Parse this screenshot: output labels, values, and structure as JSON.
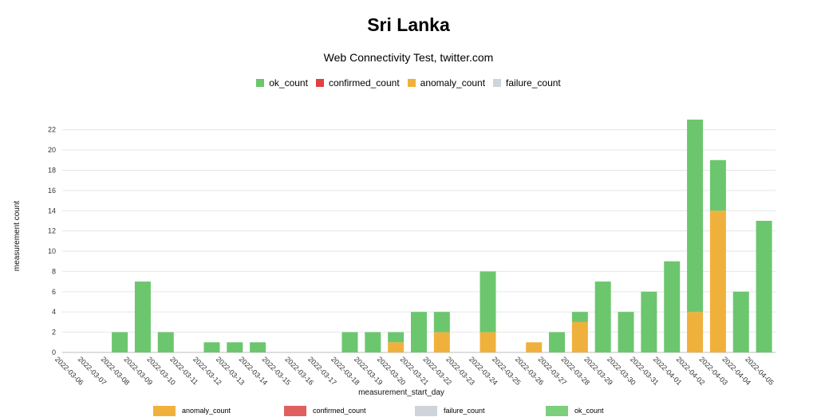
{
  "title": "Sri Lanka",
  "subtitle": "Web Connectivity Test, twitter.com",
  "legend_top": [
    {
      "key": "ok_count",
      "label": "ok_count",
      "color": "#6cc66e"
    },
    {
      "key": "confirmed_count",
      "label": "confirmed_count",
      "color": "#e0403f"
    },
    {
      "key": "anomaly_count",
      "label": "anomaly_count",
      "color": "#f0b13c"
    },
    {
      "key": "failure_count",
      "label": "failure_count",
      "color": "#ced4da"
    }
  ],
  "legend_bottom": [
    {
      "key": "anomaly_count",
      "label": "anomaly_count",
      "color": "#f0b13c"
    },
    {
      "key": "confirmed_count",
      "label": "confirmed_count",
      "color": "#e06060"
    },
    {
      "key": "failure_count",
      "label": "failure_count",
      "color": "#ced4da"
    },
    {
      "key": "ok_count",
      "label": "ok_count",
      "color": "#7ccf7c"
    }
  ],
  "chart_data": {
    "type": "bar",
    "stacked": true,
    "xlabel": "measurement_start_day",
    "ylabel": "measurement count",
    "ylim": [
      0,
      23
    ],
    "yticks": [
      0,
      2,
      4,
      6,
      8,
      10,
      12,
      14,
      16,
      18,
      20,
      22
    ],
    "grid": true,
    "categories": [
      "2022-03-06",
      "2022-03-07",
      "2022-03-08",
      "2022-03-09",
      "2022-03-10",
      "2022-03-11",
      "2022-03-12",
      "2022-03-13",
      "2022-03-14",
      "2022-03-15",
      "2022-03-16",
      "2022-03-17",
      "2022-03-18",
      "2022-03-19",
      "2022-03-20",
      "2022-03-21",
      "2022-03-22",
      "2022-03-23",
      "2022-03-24",
      "2022-03-25",
      "2022-03-26",
      "2022-03-27",
      "2022-03-28",
      "2022-03-29",
      "2022-03-30",
      "2022-03-31",
      "2022-04-01",
      "2022-04-02",
      "2022-04-03",
      "2022-04-04",
      "2022-04-05"
    ],
    "series": [
      {
        "name": "anomaly_count",
        "color": "#f0b13c",
        "values": [
          0,
          0,
          0,
          0,
          0,
          0,
          0,
          0,
          0,
          0,
          0,
          0,
          0,
          0,
          1,
          0,
          2,
          0,
          2,
          0,
          1,
          0,
          3,
          0,
          0,
          0,
          0,
          4,
          14,
          0,
          0
        ]
      },
      {
        "name": "confirmed_count",
        "color": "#e0403f",
        "values": [
          0,
          0,
          0,
          0,
          0,
          0,
          0,
          0,
          0,
          0,
          0,
          0,
          0,
          0,
          0,
          0,
          0,
          0,
          0,
          0,
          0,
          0,
          0,
          0,
          0,
          0,
          0,
          0,
          0,
          0,
          0
        ]
      },
      {
        "name": "failure_count",
        "color": "#ced4da",
        "values": [
          0,
          0,
          0,
          0,
          0,
          0,
          0,
          0,
          0,
          0,
          0,
          0,
          0,
          0,
          0,
          0,
          0,
          0,
          0,
          0,
          0,
          0,
          0,
          0,
          0,
          0,
          0,
          0,
          0,
          0,
          0
        ]
      },
      {
        "name": "ok_count",
        "color": "#6cc66e",
        "values": [
          0,
          0,
          2,
          7,
          2,
          0,
          1,
          1,
          1,
          0,
          0,
          0,
          2,
          2,
          1,
          4,
          2,
          0,
          6,
          0,
          0,
          2,
          1,
          7,
          4,
          6,
          9,
          19,
          5,
          6,
          13
        ]
      }
    ]
  }
}
